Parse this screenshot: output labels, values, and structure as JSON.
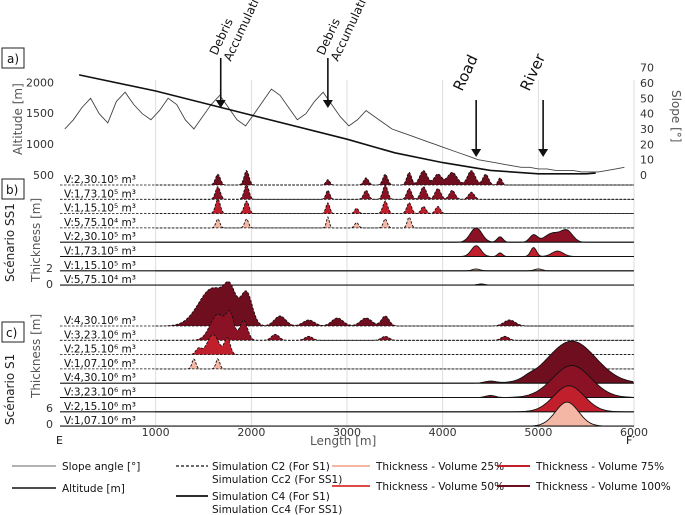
{
  "chart_data": {
    "type": "area",
    "panel_a": {
      "label": "a)",
      "ylabel_left": "Altitude [m]",
      "ylabel_right": "Slope [°]",
      "yticks_left": [
        "500",
        "1000",
        "1500",
        "2000"
      ],
      "yticks_right": [
        "0",
        "10",
        "20",
        "30",
        "40",
        "50",
        "60",
        "70"
      ],
      "ylim_left": [
        500,
        2200
      ],
      "ylim_right": [
        0,
        75
      ],
      "altitude": {
        "x": [
          200,
          1000,
          2000,
          3000,
          3500,
          4000,
          4500,
          5000,
          5500,
          5600
        ],
        "y": [
          2120,
          1860,
          1470,
          1080,
          860,
          700,
          575,
          520,
          520,
          530
        ]
      },
      "slope_seed": [
        30,
        36,
        44,
        50,
        40,
        34,
        48,
        54,
        46,
        40,
        36,
        42,
        50,
        46,
        36,
        30,
        38,
        46,
        52,
        44,
        36,
        32,
        40,
        48,
        56,
        52,
        44,
        36,
        40,
        48,
        54,
        46,
        38,
        32,
        36,
        42,
        38,
        34,
        30,
        28,
        26,
        24,
        22,
        20,
        18,
        16,
        14,
        12,
        10,
        9,
        8,
        7,
        6,
        5,
        5,
        4,
        4,
        3,
        3,
        3,
        2,
        2,
        2,
        3,
        4,
        5
      ]
    },
    "annotations": [
      {
        "text": "Debris",
        "text2": "Accumulation",
        "x": 1680
      },
      {
        "text": "Debris",
        "text2": "Accumulation",
        "x": 2800
      },
      {
        "text": "Road",
        "x": 4350
      },
      {
        "text": "River",
        "x": 5050
      }
    ],
    "panel_b": {
      "label": "b)",
      "scenario_label": "Scénario SS1",
      "thickness_label": "Thickness [m]",
      "scale_ticks": [
        "2",
        "0"
      ],
      "rows": [
        {
          "volume": "V:2,30.10⁵ m³",
          "fill": "#6e0e1e",
          "line": "dashed",
          "peaks": [
            [
              1650,
              0.6,
              25
            ],
            [
              1950,
              0.8,
              25
            ],
            [
              2800,
              0.3,
              20
            ],
            [
              3200,
              0.4,
              25
            ],
            [
              3400,
              0.6,
              25
            ],
            [
              3650,
              0.7,
              25
            ],
            [
              3800,
              0.8,
              40
            ],
            [
              3950,
              0.6,
              40
            ],
            [
              4100,
              0.7,
              50
            ],
            [
              4300,
              0.8,
              40
            ],
            [
              4450,
              0.6,
              30
            ],
            [
              4600,
              0.4,
              20
            ]
          ]
        },
        {
          "volume": "V:1,73.10⁵ m³",
          "fill": "#8a1224",
          "line": "dashed",
          "peaks": [
            [
              1650,
              0.7,
              25
            ],
            [
              1950,
              0.8,
              25
            ],
            [
              2800,
              0.5,
              20
            ],
            [
              3200,
              0.5,
              25
            ],
            [
              3400,
              0.8,
              25
            ],
            [
              3650,
              0.6,
              25
            ],
            [
              3800,
              0.7,
              30
            ],
            [
              3950,
              0.6,
              30
            ],
            [
              4100,
              0.5,
              30
            ],
            [
              4300,
              0.4,
              30
            ]
          ]
        },
        {
          "volume": "V:1,15.10⁵ m³",
          "fill": "#c21f2c",
          "line": "dashed",
          "peaks": [
            [
              1650,
              0.8,
              25
            ],
            [
              1950,
              0.7,
              25
            ],
            [
              2800,
              0.6,
              20
            ],
            [
              3100,
              0.3,
              20
            ],
            [
              3400,
              0.7,
              25
            ],
            [
              3650,
              0.6,
              25
            ],
            [
              3800,
              0.4,
              25
            ],
            [
              3950,
              0.4,
              25
            ]
          ]
        },
        {
          "volume": "V:5,75.10⁴ m³",
          "fill": "#f5b7a5",
          "line": "dashed",
          "peaks": [
            [
              1650,
              0.5,
              20
            ],
            [
              1950,
              0.5,
              20
            ],
            [
              2800,
              0.6,
              15
            ],
            [
              3100,
              0.3,
              20
            ],
            [
              3400,
              0.5,
              20
            ],
            [
              3650,
              0.6,
              20
            ]
          ]
        },
        {
          "volume": "V:2,30.10⁵ m³",
          "fill": "#8a1224",
          "line": "solid",
          "peaks": [
            [
              4350,
              0.8,
              60
            ],
            [
              4600,
              0.3,
              30
            ],
            [
              4950,
              0.4,
              40
            ],
            [
              5150,
              0.5,
              80
            ],
            [
              5300,
              0.6,
              60
            ]
          ]
        },
        {
          "volume": "V:1,73.10⁵ m³",
          "fill": "#c21f2c",
          "line": "solid",
          "peaks": [
            [
              4350,
              0.6,
              50
            ],
            [
              4600,
              0.2,
              25
            ],
            [
              4950,
              0.5,
              30
            ],
            [
              5200,
              0.3,
              60
            ]
          ]
        },
        {
          "volume": "V:1,15.10⁵ m³",
          "fill": "#f5b7a5",
          "line": "solid",
          "peaks": [
            [
              4350,
              0.1,
              40
            ],
            [
              5000,
              0.1,
              40
            ]
          ]
        },
        {
          "volume": "V:5,75.10⁴ m³",
          "fill": "#f5b7a5",
          "line": "solid",
          "peaks": [
            [
              4400,
              0.06,
              40
            ]
          ]
        }
      ]
    },
    "panel_c": {
      "label": "c)",
      "scenario_label": "Scénario S1",
      "thickness_label": "Thickness [m]",
      "scale_ticks": [
        "6",
        "0"
      ],
      "rows": [
        {
          "volume": "V:4,30.10⁶ m³",
          "fill": "#6e0e1e",
          "line": "dashed",
          "peaks": [
            [
              1600,
              1.9,
              150
            ],
            [
              1780,
              1.2,
              60
            ],
            [
              1950,
              1.6,
              60
            ],
            [
              2300,
              0.5,
              60
            ],
            [
              2600,
              0.3,
              60
            ],
            [
              2900,
              0.4,
              60
            ],
            [
              3200,
              0.4,
              60
            ],
            [
              3400,
              0.5,
              40
            ],
            [
              4700,
              0.3,
              60
            ]
          ]
        },
        {
          "volume": "V:3,23.10⁶ m³",
          "fill": "#8a1224",
          "line": "dashed",
          "peaks": [
            [
              1650,
              1.3,
              80
            ],
            [
              1780,
              1.1,
              40
            ],
            [
              1920,
              1.0,
              40
            ],
            [
              2250,
              0.3,
              40
            ],
            [
              2600,
              0.2,
              40
            ],
            [
              3400,
              0.2,
              40
            ],
            [
              4650,
              0.2,
              40
            ]
          ]
        },
        {
          "volume": "V:2,15.10⁶ m³",
          "fill": "#c21f2c",
          "line": "dashed",
          "peaks": [
            [
              1600,
              1.0,
              60
            ],
            [
              1750,
              0.8,
              30
            ],
            [
              1450,
              0.3,
              30
            ]
          ]
        },
        {
          "volume": "V:1,07.10⁶ m³",
          "fill": "#f5b7a5",
          "line": "dashed",
          "peaks": [
            [
              1400,
              0.5,
              20
            ],
            [
              1650,
              0.5,
              20
            ]
          ]
        },
        {
          "volume": "V:4,30.10⁶ m³",
          "fill": "#6e0e1e",
          "line": "solid",
          "peaks": [
            [
              5350,
              2.1,
              250
            ],
            [
              4500,
              0.1,
              60
            ],
            [
              4900,
              0.1,
              60
            ]
          ]
        },
        {
          "volume": "V:3,23.10⁶ m³",
          "fill": "#8a1224",
          "line": "solid",
          "peaks": [
            [
              5350,
              1.6,
              200
            ],
            [
              4500,
              0.1,
              50
            ]
          ]
        },
        {
          "volume": "V:2,15.10⁶ m³",
          "fill": "#c21f2c",
          "line": "solid",
          "peaks": [
            [
              5320,
              1.3,
              160
            ]
          ]
        },
        {
          "volume": "V:1,07.10⁶ m³",
          "fill": "#f5b7a5",
          "line": "solid",
          "peaks": [
            [
              5300,
              1.2,
              120
            ]
          ]
        }
      ]
    },
    "xaxis": {
      "xlabel": "Length [m]",
      "xlim": [
        0,
        6000
      ],
      "ticks": [
        "1000",
        "2000",
        "3000",
        "4000",
        "5000",
        "6000"
      ],
      "start_label": "E",
      "end_label": "F′"
    },
    "legend": {
      "slope": "Slope angle [°]",
      "altitude": "Altitude [m]",
      "c2": "Simulation C2 (For S1)",
      "cc2": "Simulation Cc2 (For SS1)",
      "c4": "Simulation C4 (For S1)",
      "cc4": "Simulation Cc4 (For SS1)",
      "v25": "Thickness - Volume 25%",
      "v50": "Thickness - Volume 50%",
      "v75": "Thickness - Volume 75%",
      "v100": "Thickness - Volume 100%"
    },
    "colors": {
      "v25": "#f5b7a5",
      "v50": "#e04a45",
      "v75": "#c21f2c",
      "v100": "#6e0e1e"
    }
  }
}
